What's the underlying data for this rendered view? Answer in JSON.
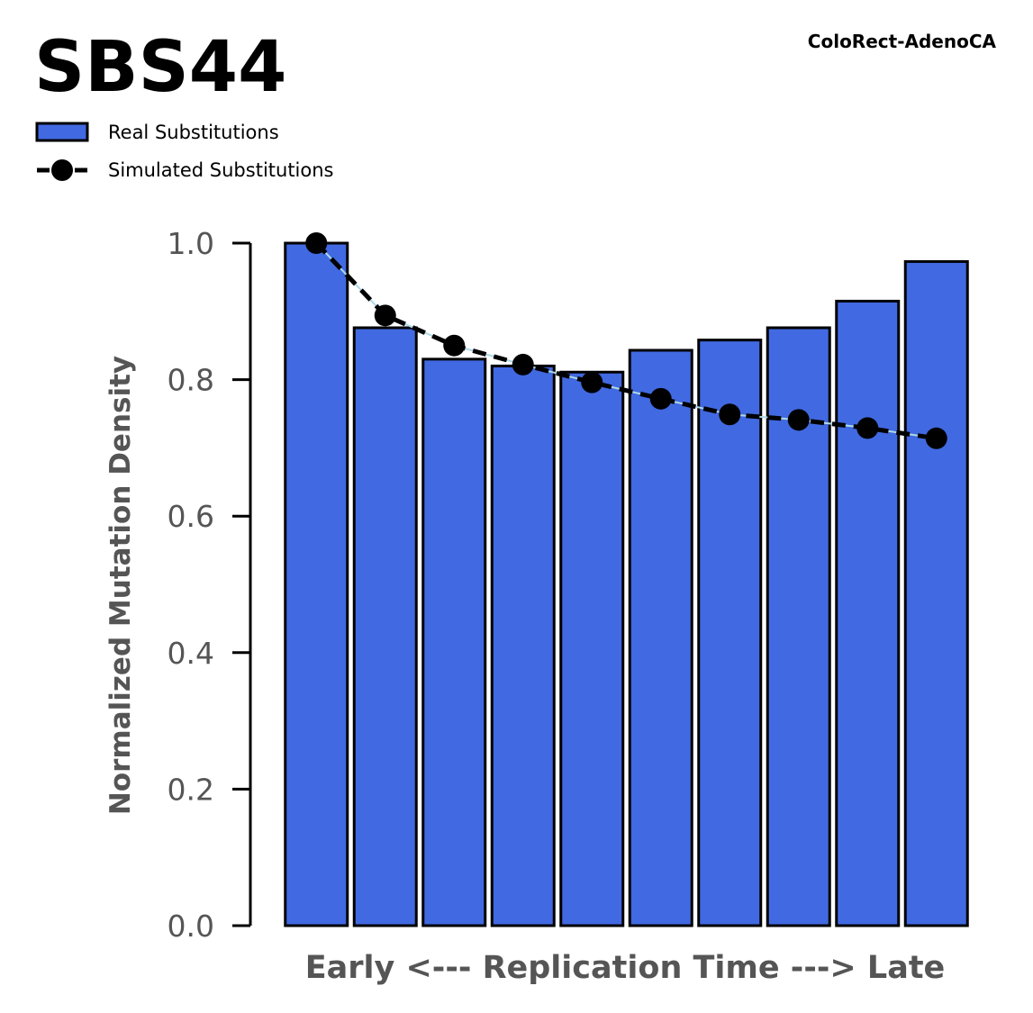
{
  "chart_data": {
    "type": "bar",
    "title": "SBS44",
    "subtitle": "ColoRect-AdenoCA",
    "xlabel": "Early <--- Replication Time ---> Late",
    "ylabel": "Normalized Mutation Density",
    "ylim": [
      0,
      1.0
    ],
    "yticks": [
      "0.0",
      "0.2",
      "0.4",
      "0.6",
      "0.8",
      "1.0"
    ],
    "grid": false,
    "legend_position": "top-left",
    "series": [
      {
        "name": "Real Substitutions",
        "kind": "bar",
        "color": "#4169e1",
        "values": [
          1.0,
          0.876,
          0.83,
          0.82,
          0.811,
          0.843,
          0.858,
          0.876,
          0.915,
          0.973
        ]
      },
      {
        "name": "Simulated Substitutions",
        "kind": "line",
        "style": "dashed",
        "color": "#000000",
        "values": [
          1.0,
          0.894,
          0.85,
          0.822,
          0.796,
          0.772,
          0.749,
          0.741,
          0.729,
          0.714
        ]
      }
    ]
  }
}
